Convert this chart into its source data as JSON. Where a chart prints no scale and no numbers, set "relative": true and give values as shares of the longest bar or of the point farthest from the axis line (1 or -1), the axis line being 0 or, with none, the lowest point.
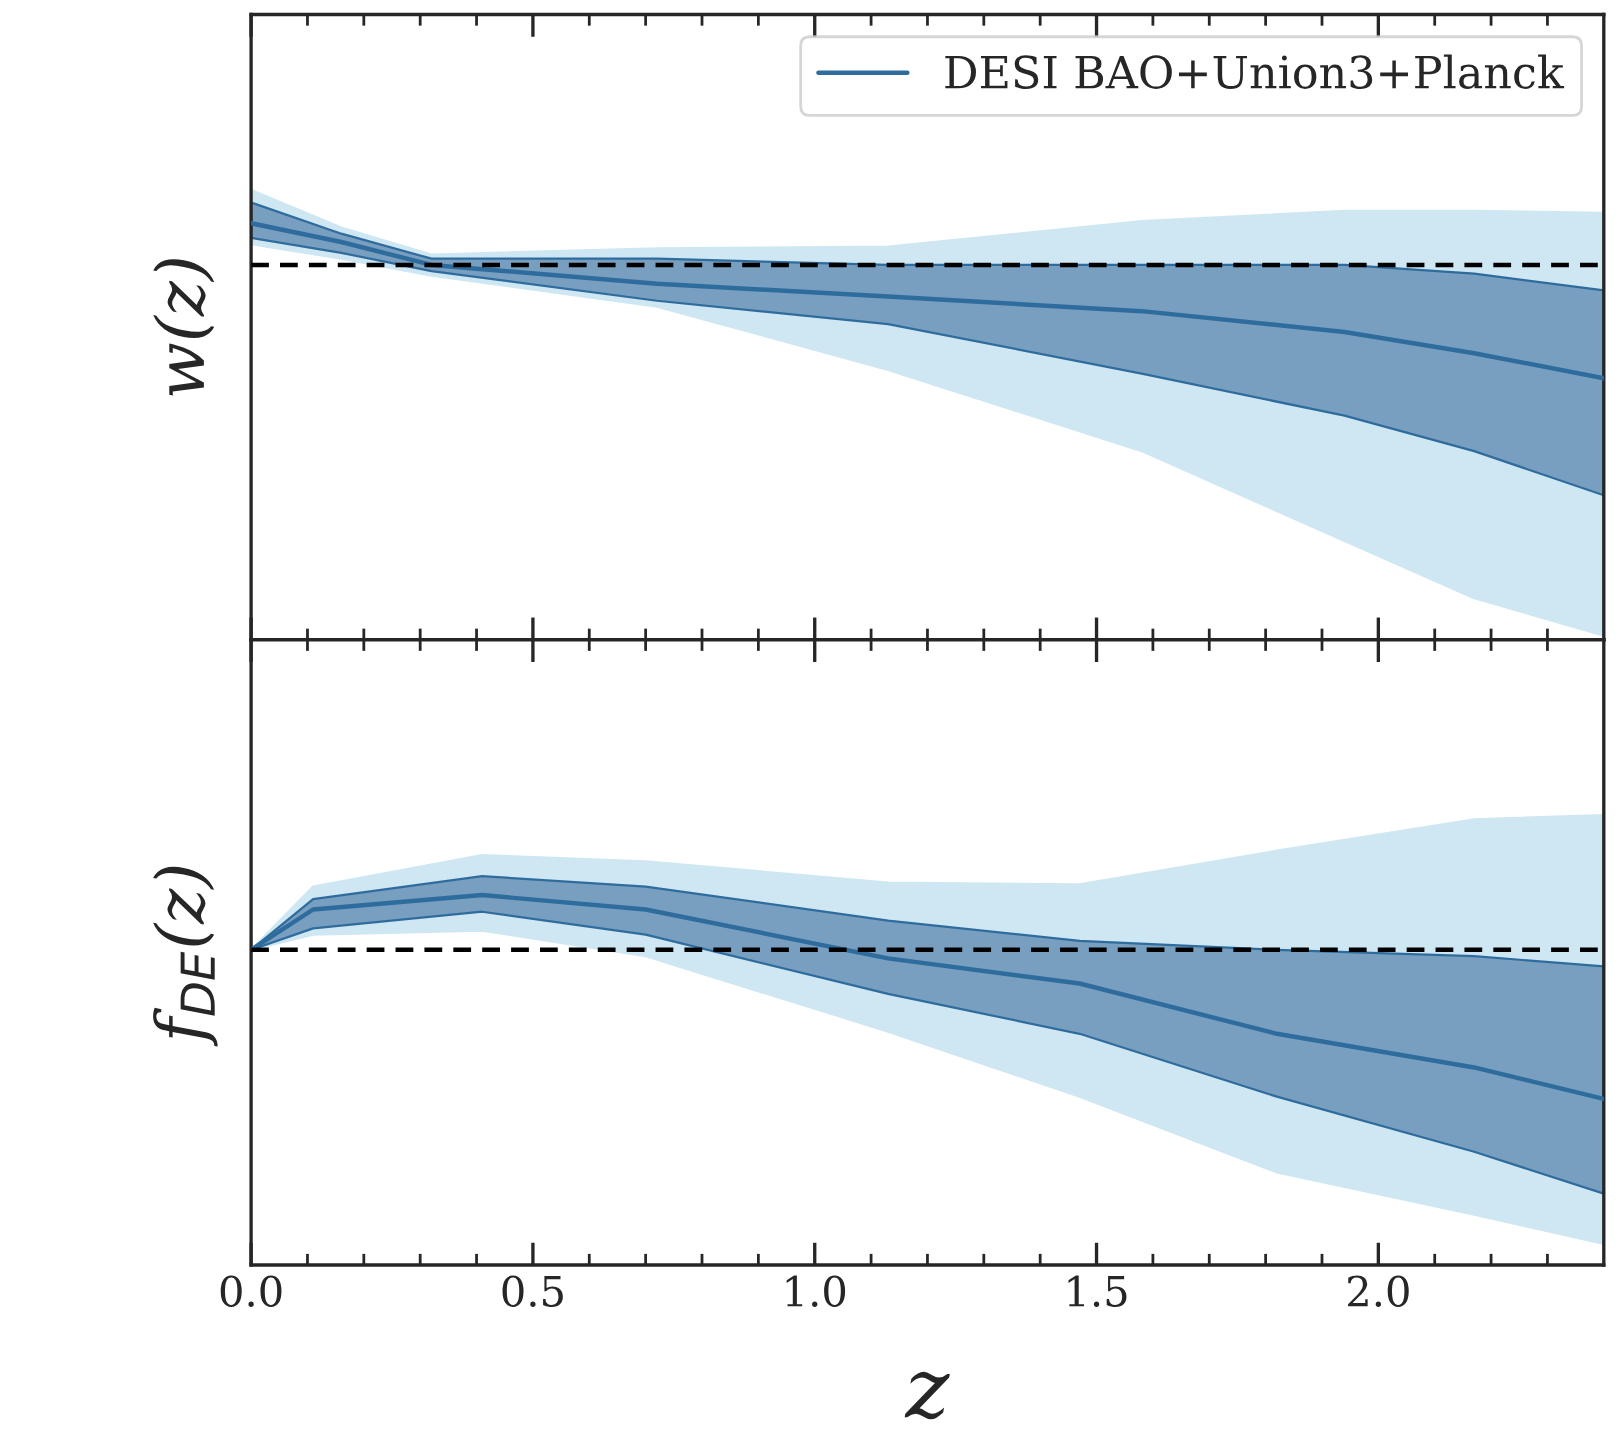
{
  "chart_data": [
    {
      "type": "line",
      "relative": true,
      "ylabel": "w(z)",
      "xlim": [
        0,
        2.4
      ],
      "xticks": [
        {
          "value": 0,
          "label": null
        },
        {
          "value": 0.5,
          "label": null
        },
        {
          "value": 1,
          "label": null
        },
        {
          "value": 1.5,
          "label": null
        },
        {
          "value": 2,
          "label": null
        }
      ],
      "tick_labels": false,
      "legend": "top right",
      "grid": false,
      "x": [
        0,
        0.16,
        0.32,
        0.72,
        1.13,
        1.58,
        1.94,
        2.17,
        2.4
      ],
      "series": [
        {
          "color": "#cfe7f3",
          "values": [
            null,
            null,
            null,
            null,
            null,
            null,
            null,
            null,
            null
          ],
          "lower": [
            0.95,
            0.915,
            0.874,
            0.8,
            0.648,
            0.453,
            0.237,
            0.1,
            0.01
          ],
          "upper": [
            1.08,
            0.99,
            0.925,
            0.94,
            0.944,
            1.005,
            1.03,
            1.03,
            1.025
          ]
        },
        {
          "name": "DESI BAO+Union3+Planck",
          "color": "#2f6c9e",
          "values": [
            1.0,
            0.955,
            0.9,
            0.855,
            0.824,
            0.789,
            0.739,
            0.688,
            0.628
          ],
          "lower": [
            0.965,
            0.929,
            0.885,
            0.814,
            0.758,
            0.639,
            0.538,
            0.453,
            0.347
          ],
          "upper": [
            1.05,
            0.975,
            0.915,
            0.915,
            0.9,
            0.9,
            0.9,
            0.879,
            0.839
          ]
        }
      ],
      "ref_lines": [
        {
          "axis": "y",
          "value": 0.9,
          "color": "#000000",
          "line_style": "dashed"
        }
      ]
    },
    {
      "type": "line",
      "relative": true,
      "ylabel": "f$_{DE}$(z)",
      "xlabel": "z",
      "xlim": [
        0,
        2.4
      ],
      "xticks": [
        {
          "value": 0,
          "label": "0.0"
        },
        {
          "value": 0.5,
          "label": "0.5"
        },
        {
          "value": 1,
          "label": "1.0"
        },
        {
          "value": 1.5,
          "label": "1.5"
        },
        {
          "value": 2,
          "label": "2.0"
        }
      ],
      "tick_labels": "x",
      "grid": false,
      "x": [
        0,
        0.11,
        0.41,
        0.7,
        1.13,
        1.47,
        1.82,
        2.17,
        2.4
      ],
      "series": [
        {
          "color": "#cfe7f3",
          "values": [
            null,
            null,
            null,
            null,
            null,
            null,
            null,
            null,
            null
          ],
          "lower": [
            0.852,
            0.893,
            0.904,
            0.835,
            0.631,
            0.455,
            0.25,
            0.136,
            0.057
          ],
          "upper": [
            0.852,
            1.023,
            1.108,
            1.091,
            1.034,
            1.029,
            1.12,
            1.205,
            1.216
          ]
        },
        {
          "color": "#2f6c9e",
          "values": [
            0.852,
            0.961,
            1.0,
            0.961,
            0.829,
            0.761,
            0.625,
            0.534,
            0.449
          ],
          "lower": [
            0.852,
            0.91,
            0.955,
            0.893,
            0.733,
            0.625,
            0.455,
            0.306,
            0.193
          ],
          "upper": [
            0.852,
            0.989,
            1.051,
            1.023,
            0.931,
            0.876,
            0.852,
            0.835,
            0.807
          ]
        }
      ],
      "ref_lines": [
        {
          "axis": "y",
          "value": 0.852,
          "color": "#000000",
          "line_style": "dashed"
        }
      ]
    }
  ]
}
